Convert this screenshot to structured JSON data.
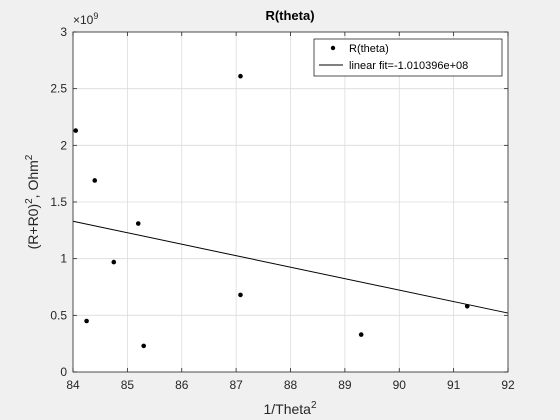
{
  "chart_data": {
    "type": "scatter",
    "title": "R(theta)",
    "xlabel_base": "1/Theta",
    "xlabel_sup": "2",
    "ylabel_base": "(R+R0)",
    "ylabel_sup": "2",
    "ylabel_mid": ", Ohm",
    "ylabel_sup2": "2",
    "y_exponent_base": "×10",
    "y_exponent_sup": "9",
    "xlim": [
      84,
      92
    ],
    "ylim": [
      0,
      3
    ],
    "xticks": [
      84,
      85,
      86,
      87,
      88,
      89,
      90,
      91,
      92
    ],
    "yticks": [
      0,
      0.5,
      1,
      1.5,
      2,
      2.5,
      3
    ],
    "ytick_labels": [
      "0",
      "0.5",
      "1",
      "1.5",
      "2",
      "2.5",
      "3"
    ],
    "grid": true,
    "legend_position": "top-right",
    "series": [
      {
        "name": "R(theta)",
        "kind": "scatter",
        "color": "#000000",
        "points": [
          [
            84.05,
            2.13
          ],
          [
            84.4,
            1.69
          ],
          [
            84.25,
            0.45
          ],
          [
            84.75,
            0.97
          ],
          [
            85.2,
            1.31
          ],
          [
            85.3,
            0.23
          ],
          [
            87.08,
            2.61
          ],
          [
            87.08,
            0.68
          ],
          [
            89.3,
            0.33
          ],
          [
            91.25,
            0.58
          ]
        ]
      },
      {
        "name": "linear fit=-1.010396e+08",
        "kind": "line",
        "color": "#000000",
        "points": [
          [
            84,
            1.33
          ],
          [
            92,
            0.52
          ]
        ]
      }
    ]
  }
}
